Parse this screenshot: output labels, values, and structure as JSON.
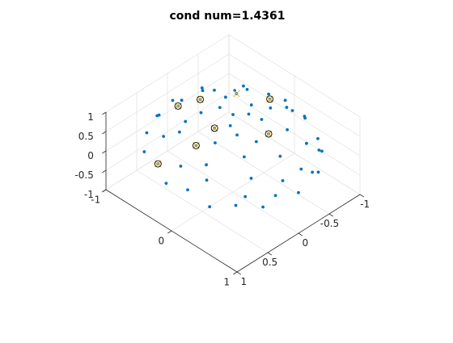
{
  "chart_data": {
    "type": "scatter3d",
    "title": "cond num=1.4361",
    "xlabel": "",
    "ylabel": "",
    "zlabel": "",
    "xlim": [
      -1,
      1
    ],
    "ylim": [
      -1,
      1
    ],
    "zlim": [
      -1,
      1
    ],
    "grid": true,
    "x_ticks": [
      -1,
      -0.5,
      0,
      0.5,
      1
    ],
    "x_tick_labels": [
      "-1",
      "-0.5",
      "0",
      "0.5",
      "1"
    ],
    "y_ticks": [
      -1,
      0,
      1
    ],
    "y_tick_labels": [
      "-1",
      "0",
      "1"
    ],
    "z_ticks": [
      -1,
      -0.5,
      0,
      0.5,
      1
    ],
    "z_tick_labels": [
      "-1",
      "-0.5",
      "0",
      "0.5",
      "1"
    ],
    "colors": {
      "dots": "#0072bd",
      "crosses": "#edb120",
      "circles": "#000000"
    },
    "series": [
      {
        "marker": "dot",
        "points": [
          [
            0.0,
            0.0,
            1.0
          ],
          [
            0.15,
            0.1,
            0.97
          ],
          [
            -0.15,
            0.1,
            0.97
          ],
          [
            0.0,
            -0.2,
            0.97
          ],
          [
            0.3,
            0.0,
            0.95
          ],
          [
            -0.3,
            0.0,
            0.95
          ],
          [
            0.2,
            0.25,
            0.94
          ],
          [
            -0.2,
            0.25,
            0.94
          ],
          [
            0.2,
            -0.3,
            0.93
          ],
          [
            -0.2,
            -0.3,
            0.93
          ],
          [
            0.45,
            0.15,
            0.88
          ],
          [
            -0.45,
            0.15,
            0.88
          ],
          [
            0.1,
            0.45,
            0.88
          ],
          [
            -0.1,
            0.45,
            0.88
          ],
          [
            0.4,
            -0.35,
            0.85
          ],
          [
            -0.4,
            -0.35,
            0.85
          ],
          [
            0.0,
            -0.5,
            0.86
          ],
          [
            0.6,
            0.0,
            0.8
          ],
          [
            -0.6,
            0.0,
            0.8
          ],
          [
            0.35,
            0.5,
            0.79
          ],
          [
            -0.35,
            0.5,
            0.79
          ],
          [
            0.55,
            -0.3,
            0.78
          ],
          [
            -0.55,
            -0.3,
            0.78
          ],
          [
            0.2,
            -0.65,
            0.73
          ],
          [
            -0.2,
            -0.65,
            0.73
          ],
          [
            0.7,
            0.25,
            0.67
          ],
          [
            -0.7,
            0.25,
            0.67
          ],
          [
            0.0,
            0.72,
            0.69
          ],
          [
            0.65,
            -0.45,
            0.61
          ],
          [
            -0.65,
            -0.45,
            0.61
          ],
          [
            0.45,
            0.7,
            0.55
          ],
          [
            -0.45,
            0.7,
            0.55
          ],
          [
            0.35,
            -0.8,
            0.49
          ],
          [
            -0.35,
            -0.8,
            0.49
          ],
          [
            0.85,
            0.0,
            0.52
          ],
          [
            -0.85,
            0.0,
            0.52
          ],
          [
            0.8,
            0.35,
            0.48
          ],
          [
            -0.8,
            0.35,
            0.48
          ],
          [
            0.15,
            0.9,
            0.4
          ],
          [
            -0.15,
            0.9,
            0.4
          ],
          [
            0.0,
            -0.92,
            0.39
          ],
          [
            0.9,
            -0.3,
            0.31
          ],
          [
            -0.9,
            -0.3,
            0.31
          ],
          [
            0.6,
            0.75,
            0.28
          ],
          [
            -0.6,
            0.75,
            0.28
          ],
          [
            0.55,
            -0.8,
            0.23
          ],
          [
            -0.55,
            -0.8,
            0.23
          ],
          [
            0.95,
            0.2,
            0.22
          ],
          [
            -0.95,
            0.2,
            0.22
          ],
          [
            0.3,
            0.93,
            0.2
          ],
          [
            -0.3,
            0.93,
            0.2
          ],
          [
            0.2,
            -0.97,
            0.14
          ],
          [
            -0.2,
            -0.97,
            0.14
          ],
          [
            0.98,
            -0.1,
            0.1
          ],
          [
            -0.98,
            -0.1,
            0.1
          ],
          [
            0.7,
            0.7,
            0.1
          ],
          [
            -0.7,
            0.7,
            0.1
          ],
          [
            0.75,
            -0.65,
            0.1
          ],
          [
            -0.75,
            -0.65,
            0.1
          ],
          [
            0.0,
            1.0,
            0.05
          ],
          [
            0.45,
            0.88,
            0.0
          ],
          [
            -0.45,
            0.88,
            0.0
          ],
          [
            0.88,
            0.47,
            0.0
          ],
          [
            -0.88,
            0.47,
            0.0
          ]
        ]
      },
      {
        "marker": "x",
        "points": [
          [
            -0.1,
            0.45,
            0.88
          ],
          [
            0.3,
            0.0,
            0.95
          ],
          [
            0.0,
            -0.5,
            0.86
          ],
          [
            -0.6,
            0.0,
            0.8
          ],
          [
            0.6,
            0.0,
            0.8
          ],
          [
            0.2,
            -0.65,
            0.73
          ],
          [
            0.9,
            -0.3,
            0.31
          ],
          [
            -0.75,
            -0.65,
            0.1
          ]
        ]
      },
      {
        "marker": "circle",
        "points": [
          [
            -0.1,
            0.45,
            0.88
          ],
          [
            0.3,
            0.0,
            0.95
          ],
          [
            0.0,
            -0.5,
            0.86
          ],
          [
            -0.6,
            0.0,
            0.8
          ],
          [
            0.6,
            0.0,
            0.8
          ],
          [
            0.2,
            -0.65,
            0.73
          ],
          [
            0.9,
            -0.3,
            0.31
          ]
        ]
      }
    ]
  }
}
